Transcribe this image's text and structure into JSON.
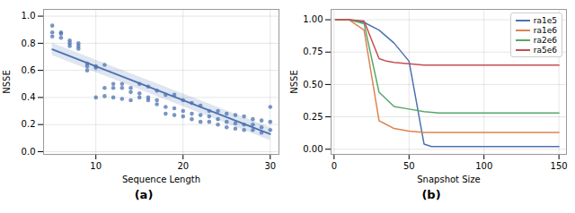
{
  "chart_data": [
    {
      "type": "scatter",
      "title": "(a)",
      "xlabel": "Sequence Length",
      "ylabel": "NSSE",
      "x": [
        5,
        5,
        5,
        6,
        6,
        6,
        7,
        7,
        7,
        8,
        8,
        8,
        9,
        9,
        9,
        10,
        10,
        10,
        11,
        11,
        11,
        12,
        12,
        12,
        13,
        13,
        13,
        14,
        14,
        14,
        15,
        15,
        15,
        16,
        16,
        16,
        17,
        17,
        17,
        18,
        18,
        18,
        19,
        19,
        19,
        20,
        20,
        20,
        21,
        21,
        21,
        22,
        22,
        22,
        23,
        23,
        23,
        24,
        24,
        24,
        25,
        25,
        25,
        26,
        26,
        26,
        27,
        27,
        27,
        28,
        28,
        28,
        29,
        29,
        29,
        30,
        30,
        30
      ],
      "values": [
        0.93,
        0.88,
        0.85,
        0.88,
        0.87,
        0.84,
        0.82,
        0.8,
        0.78,
        0.8,
        0.78,
        0.76,
        0.65,
        0.63,
        0.6,
        0.63,
        0.62,
        0.4,
        0.64,
        0.47,
        0.41,
        0.5,
        0.47,
        0.4,
        0.5,
        0.47,
        0.39,
        0.47,
        0.44,
        0.38,
        0.5,
        0.43,
        0.4,
        0.48,
        0.4,
        0.38,
        0.45,
        0.38,
        0.35,
        0.42,
        0.33,
        0.28,
        0.42,
        0.32,
        0.27,
        0.38,
        0.3,
        0.26,
        0.36,
        0.28,
        0.24,
        0.34,
        0.27,
        0.22,
        0.3,
        0.26,
        0.22,
        0.3,
        0.24,
        0.2,
        0.28,
        0.22,
        0.18,
        0.27,
        0.21,
        0.17,
        0.26,
        0.2,
        0.16,
        0.24,
        0.2,
        0.16,
        0.23,
        0.18,
        0.14,
        0.33,
        0.22,
        0.16
      ],
      "color": "#4C72B0",
      "line": {
        "type": "line",
        "x": [
          5,
          30
        ],
        "values": [
          0.755,
          0.13
        ],
        "ci_lower": [
          0.71,
          0.082
        ],
        "ci_upper": [
          0.8,
          0.178
        ],
        "color": "#4C72B0"
      },
      "xlim": [
        4,
        31
      ],
      "ylim": [
        -0.02,
        1.05
      ],
      "xticks": [
        10,
        20,
        30
      ],
      "yticks": [
        {
          "value": 0.0,
          "label": "0.0"
        },
        0.2,
        0.4,
        0.6,
        0.8,
        {
          "value": 1.0,
          "label": "1.0"
        }
      ],
      "grid": true
    },
    {
      "type": "line",
      "title": "(b)",
      "xlabel": "Snapshot Size",
      "ylabel": "NSSE",
      "series": [
        {
          "name": "ra1e5",
          "color": "#4C72B0",
          "x": [
            1,
            10,
            20,
            30,
            40,
            50,
            60,
            65,
            80,
            100,
            150
          ],
          "values": [
            1.0,
            1.0,
            0.98,
            0.92,
            0.82,
            0.68,
            0.04,
            0.02,
            0.02,
            0.02,
            0.02
          ]
        },
        {
          "name": "ra1e6",
          "color": "#DD8452",
          "x": [
            1,
            10,
            20,
            30,
            35,
            40,
            50,
            60,
            80,
            100,
            110,
            150
          ],
          "values": [
            1.0,
            1.0,
            0.92,
            0.22,
            0.19,
            0.16,
            0.14,
            0.13,
            0.13,
            0.13,
            0.13,
            0.13
          ]
        },
        {
          "name": "ra2e6",
          "color": "#55A868",
          "x": [
            1,
            10,
            20,
            30,
            40,
            50,
            60,
            70,
            80,
            100,
            150
          ],
          "values": [
            1.0,
            1.0,
            0.97,
            0.44,
            0.33,
            0.31,
            0.29,
            0.28,
            0.28,
            0.28,
            0.28
          ]
        },
        {
          "name": "ra5e6",
          "color": "#C44E52",
          "x": [
            1,
            10,
            20,
            30,
            35,
            40,
            50,
            60,
            80,
            100,
            150
          ],
          "values": [
            1.0,
            1.0,
            0.99,
            0.7,
            0.68,
            0.67,
            0.66,
            0.65,
            0.65,
            0.65,
            0.65
          ]
        }
      ],
      "xlim": [
        -2,
        155
      ],
      "ylim": [
        -0.04,
        1.08
      ],
      "xticks": [
        0,
        50,
        100,
        150
      ],
      "yticks": [
        {
          "value": 0.0,
          "label": "0.00"
        },
        0.25,
        {
          "value": 0.5,
          "label": "0.50"
        },
        0.75,
        {
          "value": 1.0,
          "label": "1.00"
        }
      ],
      "legend": "upper right",
      "grid": true
    }
  ]
}
